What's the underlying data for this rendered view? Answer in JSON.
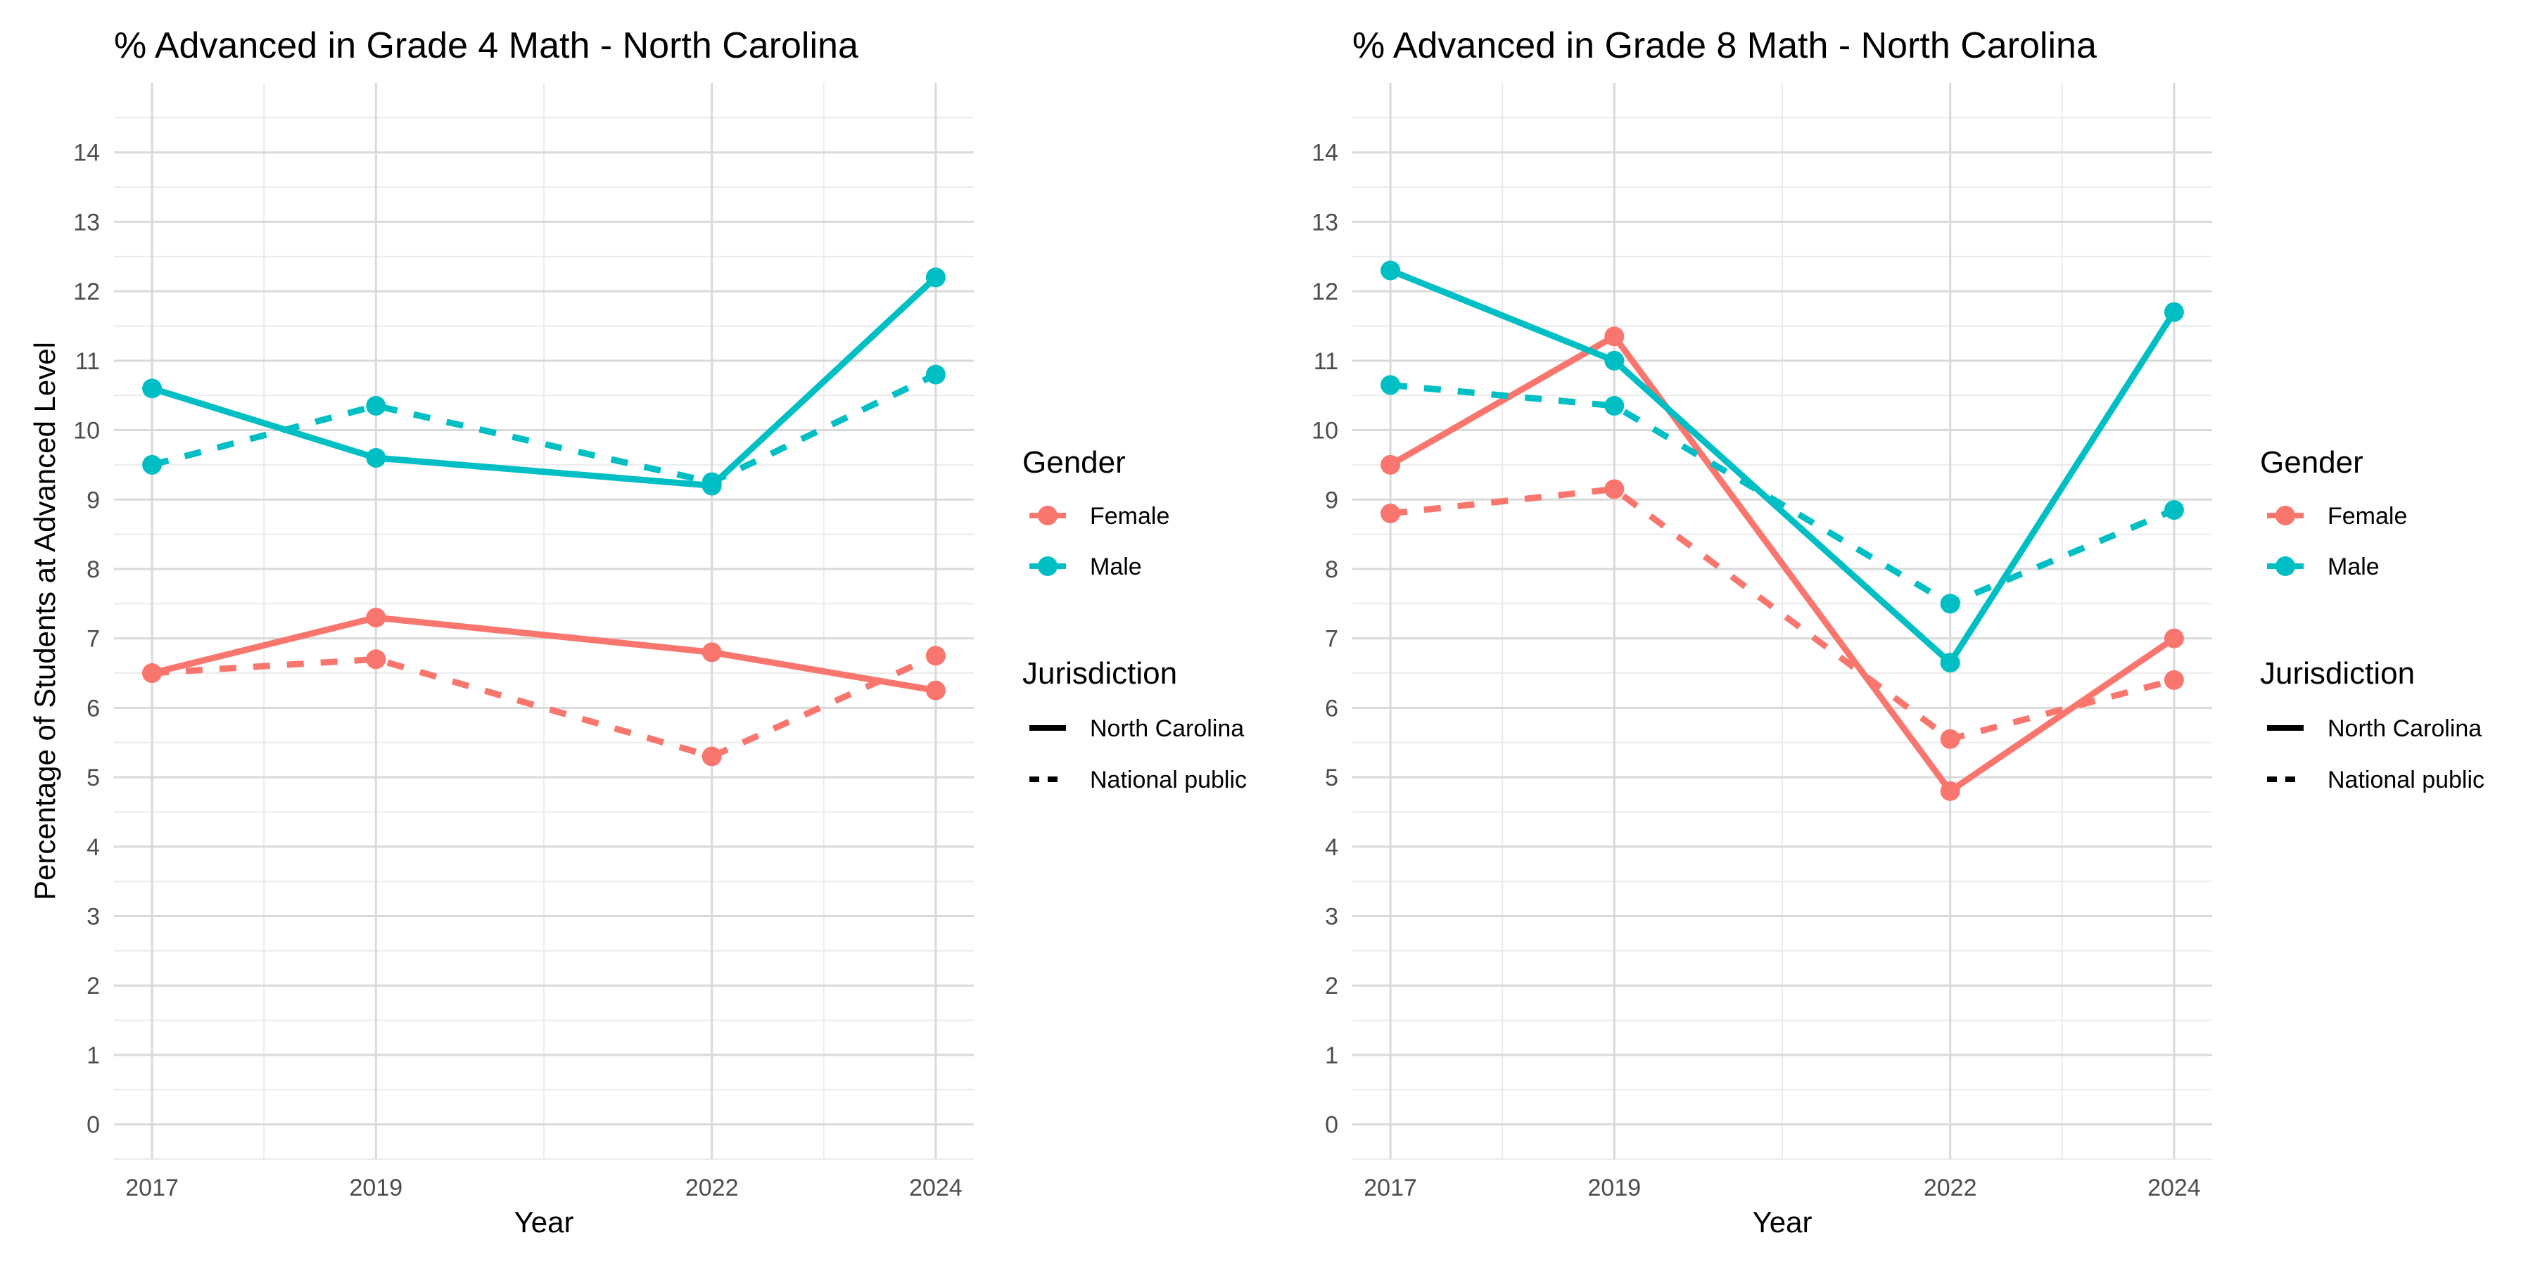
{
  "chart_data": [
    {
      "type": "line",
      "title": "% Advanced in Grade 4 Math - North Carolina",
      "xlabel": "Year",
      "ylabel": "Percentage of Students at Advanced Level",
      "x": [
        2017,
        2019,
        2022,
        2024
      ],
      "x_tick_labels": [
        "2017",
        "2019",
        "2022",
        "2024"
      ],
      "xlim": [
        2016.66,
        2024.34
      ],
      "ylim": [
        -0.5,
        15.0
      ],
      "y_ticks": [
        0,
        1,
        2,
        3,
        4,
        5,
        6,
        7,
        8,
        9,
        10,
        11,
        12,
        13,
        14
      ],
      "grid": true,
      "legend": "right",
      "series": [
        {
          "name": "Female",
          "gender": "Female",
          "jurisdiction": "North Carolina",
          "color": "#F8766D",
          "linetype": "solid",
          "values": [
            6.5,
            7.3,
            6.8,
            6.25
          ]
        },
        {
          "name": "Female",
          "gender": "Female",
          "jurisdiction": "National public",
          "color": "#F8766D",
          "linetype": "dashed",
          "values": [
            6.5,
            6.7,
            5.3,
            6.75
          ]
        },
        {
          "name": "Male",
          "gender": "Male",
          "jurisdiction": "North Carolina",
          "color": "#00BFC4",
          "linetype": "solid",
          "values": [
            10.6,
            9.6,
            9.2,
            12.2
          ]
        },
        {
          "name": "Male",
          "gender": "Male",
          "jurisdiction": "National public",
          "color": "#00BFC4",
          "linetype": "dashed",
          "values": [
            9.5,
            10.35,
            9.25,
            10.8
          ]
        }
      ]
    },
    {
      "type": "line",
      "title": "% Advanced in Grade 8 Math - North Carolina",
      "xlabel": "Year",
      "ylabel": "",
      "x": [
        2017,
        2019,
        2022,
        2024
      ],
      "x_tick_labels": [
        "2017",
        "2019",
        "2022",
        "2024"
      ],
      "xlim": [
        2016.66,
        2024.34
      ],
      "ylim": [
        -0.5,
        15.0
      ],
      "y_ticks": [
        0,
        1,
        2,
        3,
        4,
        5,
        6,
        7,
        8,
        9,
        10,
        11,
        12,
        13,
        14
      ],
      "grid": true,
      "legend": "right",
      "series": [
        {
          "name": "Female",
          "gender": "Female",
          "jurisdiction": "North Carolina",
          "color": "#F8766D",
          "linetype": "solid",
          "values": [
            9.5,
            11.35,
            4.8,
            7.0
          ]
        },
        {
          "name": "Female",
          "gender": "Female",
          "jurisdiction": "National public",
          "color": "#F8766D",
          "linetype": "dashed",
          "values": [
            8.8,
            9.15,
            5.55,
            6.4
          ]
        },
        {
          "name": "Male",
          "gender": "Male",
          "jurisdiction": "North Carolina",
          "color": "#00BFC4",
          "linetype": "solid",
          "values": [
            12.3,
            11.0,
            6.65,
            11.7
          ]
        },
        {
          "name": "Male",
          "gender": "Male",
          "jurisdiction": "National public",
          "color": "#00BFC4",
          "linetype": "dashed",
          "values": [
            10.65,
            10.35,
            7.5,
            8.85
          ]
        }
      ]
    }
  ],
  "legend": {
    "gender_title": "Gender",
    "gender_items": [
      {
        "label": "Female",
        "color": "#F8766D"
      },
      {
        "label": "Male",
        "color": "#00BFC4"
      }
    ],
    "jurisdiction_title": "Jurisdiction",
    "jurisdiction_items": [
      {
        "label": "North Carolina",
        "linetype": "solid"
      },
      {
        "label": "National public",
        "linetype": "dashed"
      }
    ]
  },
  "colors": {
    "female": "#F8766D",
    "male": "#00BFC4",
    "grid_major": "#d9d9d9",
    "grid_minor": "#ebebeb",
    "tick_text": "#4d4d4d"
  }
}
